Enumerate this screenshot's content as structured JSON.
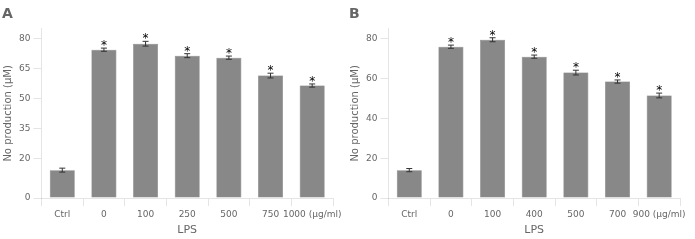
{
  "chart_data": [
    {
      "type": "bar",
      "title": "A",
      "categories": [
        "Ctrl",
        "0",
        "100",
        "250",
        "500",
        "750",
        "1000 (μg/ml)"
      ],
      "values": [
        14.0,
        74.5,
        77.5,
        71.5,
        70.5,
        61.5,
        56.5
      ],
      "errors": [
        1.0,
        0.8,
        1.2,
        1.0,
        0.8,
        1.2,
        0.8
      ],
      "xlabel": "LPS",
      "ylabel": "No production (μM)",
      "ylim": [
        0,
        85
      ],
      "yticks": [
        0,
        20,
        35,
        50,
        65,
        80
      ],
      "color": "#888888",
      "grid": false,
      "annotations": [
        {
          "category": "0",
          "text": "*"
        },
        {
          "category": "100",
          "text": "*"
        },
        {
          "category": "250",
          "text": "*"
        },
        {
          "category": "500",
          "text": "*"
        },
        {
          "category": "750",
          "text": "*"
        },
        {
          "category": "1000 (μg/ml)",
          "text": "*"
        }
      ]
    },
    {
      "type": "bar",
      "title": "B",
      "categories": [
        "Ctrl",
        "0",
        "100",
        "400",
        "500",
        "700",
        "900 (μg/ml)"
      ],
      "values": [
        14.0,
        76.0,
        79.5,
        71.0,
        63.0,
        58.5,
        51.5
      ],
      "errors": [
        0.8,
        0.8,
        1.0,
        0.8,
        1.2,
        0.8,
        1.2
      ],
      "xlabel": "LPS",
      "ylabel": "No production (μM)",
      "ylim": [
        0,
        85
      ],
      "yticks": [
        0,
        20,
        40,
        60,
        80
      ],
      "color": "#888888",
      "grid": false,
      "annotations": [
        {
          "category": "0",
          "text": "*"
        },
        {
          "category": "100",
          "text": "*"
        },
        {
          "category": "400",
          "text": "*"
        },
        {
          "category": "500",
          "text": "*"
        },
        {
          "category": "700",
          "text": "*"
        },
        {
          "category": "900 (μg/ml)",
          "text": "*"
        }
      ]
    }
  ]
}
